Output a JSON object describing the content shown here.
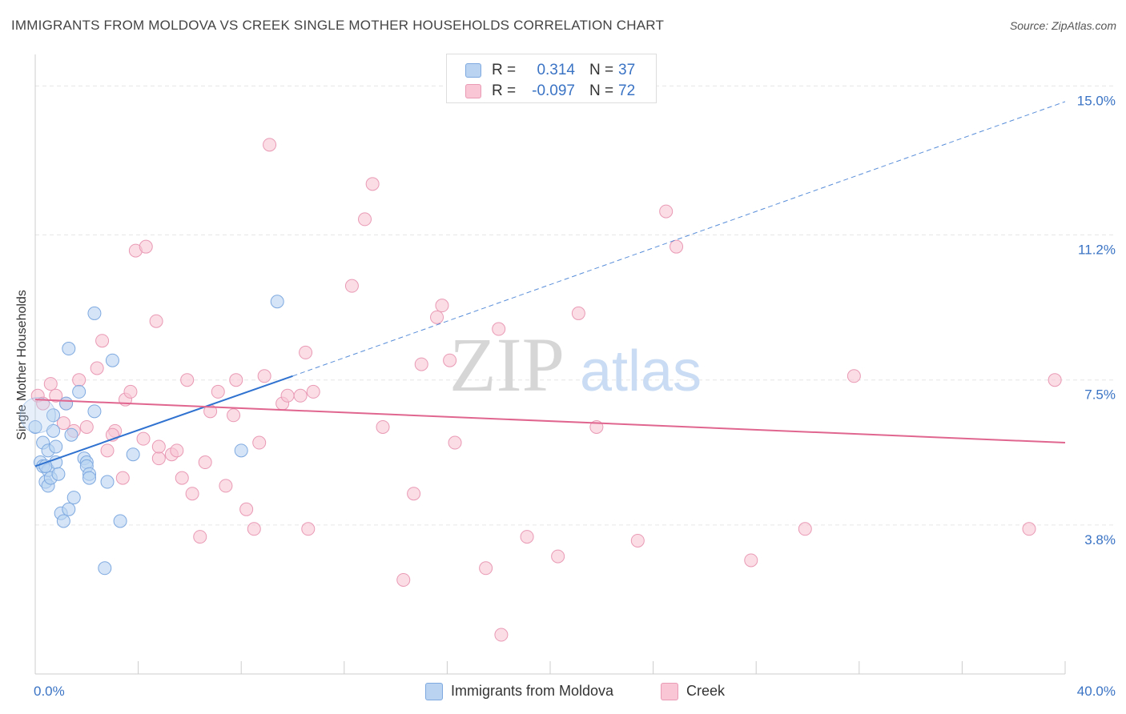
{
  "header": {
    "title": "IMMIGRANTS FROM MOLDOVA VS CREEK SINGLE MOTHER HOUSEHOLDS CORRELATION CHART",
    "source": "Source: ZipAtlas.com"
  },
  "watermark": {
    "zip": "ZIP",
    "atlas": "atlas"
  },
  "legend": {
    "rows": [
      {
        "r_label": "R =",
        "r_value": "0.314",
        "n_label": "N =",
        "n_value": "37"
      },
      {
        "r_label": "R =",
        "r_value": "-0.097",
        "n_label": "N =",
        "n_value": "72"
      }
    ]
  },
  "colors": {
    "blue_fill": "#b9d3f1",
    "blue_stroke": "#7ea9e0",
    "blue_line": "#2f72d0",
    "pink_fill": "#f8c6d5",
    "pink_stroke": "#e99ab4",
    "pink_line": "#e06690",
    "axis_text": "#3a73c4",
    "grid": "#e6e6e6"
  },
  "chart_data": {
    "type": "scatter",
    "title": "IMMIGRANTS FROM MOLDOVA VS CREEK SINGLE MOTHER HOUSEHOLDS CORRELATION CHART",
    "xlabel": "",
    "ylabel": "Single Mother Households",
    "xlim": [
      0,
      40
    ],
    "ylim": [
      0,
      15.6
    ],
    "x_tick_labels": [
      "0.0%",
      "40.0%"
    ],
    "y_ticks": [
      3.8,
      7.5,
      11.2,
      15.0
    ],
    "y_tick_labels": [
      "3.8%",
      "7.5%",
      "11.2%",
      "15.0%"
    ],
    "grid": true,
    "legend_position": "bottom",
    "series": [
      {
        "name": "Immigrants from Moldova",
        "color": "#b9d3f1",
        "r": 0.314,
        "n": 37,
        "trend": {
          "x0": 0,
          "y0": 5.3,
          "x1": 10,
          "y1": 7.6,
          "extend_to_x": 40,
          "extend_y": 14.6
        },
        "points": [
          [
            0.0,
            6.3
          ],
          [
            0.2,
            5.4
          ],
          [
            0.3,
            5.3
          ],
          [
            0.3,
            5.9
          ],
          [
            0.4,
            4.9
          ],
          [
            0.5,
            4.8
          ],
          [
            0.5,
            5.2
          ],
          [
            0.5,
            5.7
          ],
          [
            0.6,
            5.0
          ],
          [
            0.7,
            6.6
          ],
          [
            0.7,
            6.2
          ],
          [
            0.8,
            5.8
          ],
          [
            0.8,
            5.4
          ],
          [
            0.9,
            5.1
          ],
          [
            1.0,
            4.1
          ],
          [
            1.1,
            3.9
          ],
          [
            1.2,
            6.9
          ],
          [
            1.3,
            8.3
          ],
          [
            1.3,
            4.2
          ],
          [
            1.4,
            6.1
          ],
          [
            1.5,
            4.5
          ],
          [
            1.7,
            7.2
          ],
          [
            1.9,
            5.5
          ],
          [
            2.0,
            5.4
          ],
          [
            2.0,
            5.3
          ],
          [
            2.1,
            5.1
          ],
          [
            2.3,
            9.2
          ],
          [
            2.3,
            6.7
          ],
          [
            2.7,
            2.7
          ],
          [
            2.8,
            4.9
          ],
          [
            3.0,
            8.0
          ],
          [
            3.3,
            3.9
          ],
          [
            3.8,
            5.6
          ],
          [
            8.0,
            5.7
          ],
          [
            9.4,
            9.5
          ],
          [
            2.1,
            5.0
          ],
          [
            0.4,
            5.3
          ]
        ]
      },
      {
        "name": "Creek",
        "color": "#f8c6d5",
        "r": -0.097,
        "n": 72,
        "trend": {
          "x0": 0,
          "y0": 7.0,
          "x1": 40,
          "y1": 5.9
        },
        "points": [
          [
            0.1,
            7.1
          ],
          [
            0.3,
            6.9
          ],
          [
            0.6,
            7.4
          ],
          [
            0.8,
            7.1
          ],
          [
            1.1,
            6.4
          ],
          [
            1.2,
            6.9
          ],
          [
            1.5,
            6.2
          ],
          [
            1.7,
            7.5
          ],
          [
            2.0,
            6.3
          ],
          [
            2.4,
            7.8
          ],
          [
            2.6,
            8.5
          ],
          [
            2.8,
            5.7
          ],
          [
            3.1,
            6.2
          ],
          [
            3.4,
            5.0
          ],
          [
            3.5,
            7.0
          ],
          [
            3.7,
            7.2
          ],
          [
            3.9,
            10.8
          ],
          [
            4.2,
            6.0
          ],
          [
            4.3,
            10.9
          ],
          [
            4.7,
            9.0
          ],
          [
            4.8,
            5.5
          ],
          [
            5.3,
            5.6
          ],
          [
            5.5,
            5.7
          ],
          [
            5.7,
            5.0
          ],
          [
            5.9,
            7.5
          ],
          [
            6.1,
            4.6
          ],
          [
            6.4,
            3.5
          ],
          [
            6.6,
            5.4
          ],
          [
            6.8,
            6.7
          ],
          [
            7.1,
            7.2
          ],
          [
            7.4,
            4.8
          ],
          [
            7.7,
            6.6
          ],
          [
            7.8,
            7.5
          ],
          [
            8.2,
            4.2
          ],
          [
            8.5,
            3.7
          ],
          [
            8.7,
            5.9
          ],
          [
            8.9,
            7.6
          ],
          [
            9.1,
            13.5
          ],
          [
            9.6,
            6.9
          ],
          [
            9.8,
            7.1
          ],
          [
            10.3,
            7.1
          ],
          [
            10.5,
            8.2
          ],
          [
            10.6,
            3.7
          ],
          [
            10.8,
            7.2
          ],
          [
            12.3,
            9.9
          ],
          [
            12.8,
            11.6
          ],
          [
            13.1,
            12.5
          ],
          [
            13.5,
            6.3
          ],
          [
            14.3,
            2.4
          ],
          [
            14.7,
            4.6
          ],
          [
            15.0,
            7.9
          ],
          [
            15.6,
            9.1
          ],
          [
            15.8,
            9.4
          ],
          [
            16.1,
            8.0
          ],
          [
            16.3,
            5.9
          ],
          [
            17.5,
            2.7
          ],
          [
            18.0,
            8.8
          ],
          [
            18.1,
            1.0
          ],
          [
            19.1,
            3.5
          ],
          [
            20.3,
            3.0
          ],
          [
            21.1,
            9.2
          ],
          [
            21.8,
            6.3
          ],
          [
            23.4,
            3.4
          ],
          [
            24.5,
            11.8
          ],
          [
            24.9,
            10.9
          ],
          [
            27.8,
            2.9
          ],
          [
            29.9,
            3.7
          ],
          [
            31.8,
            7.6
          ],
          [
            38.6,
            3.7
          ],
          [
            39.6,
            7.5
          ],
          [
            4.8,
            5.8
          ],
          [
            3.0,
            6.1
          ]
        ]
      }
    ]
  }
}
